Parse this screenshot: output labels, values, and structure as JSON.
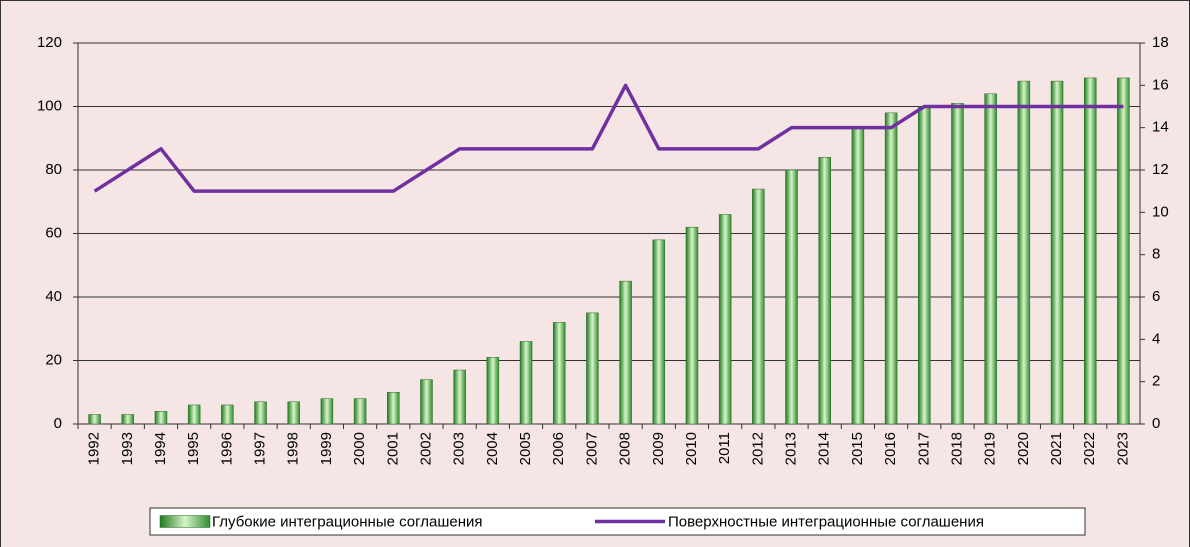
{
  "chart_data": {
    "type": "bar",
    "categories": [
      "1992",
      "1993",
      "1994",
      "1995",
      "1996",
      "1997",
      "1998",
      "1999",
      "2000",
      "2001",
      "2002",
      "2003",
      "2004",
      "2005",
      "2006",
      "2007",
      "2008",
      "2009",
      "2010",
      "2011",
      "2012",
      "2013",
      "2014",
      "2015",
      "2016",
      "2017",
      "2018",
      "2019",
      "2020",
      "2021",
      "2022",
      "2023"
    ],
    "series": [
      {
        "name": "Глубокие интеграционные соглашения",
        "type": "bar",
        "color": "#4ea83a",
        "values": [
          3,
          3,
          4,
          6,
          6,
          7,
          7,
          8,
          8,
          10,
          14,
          17,
          21,
          26,
          32,
          35,
          45,
          58,
          62,
          66,
          74,
          80,
          84,
          93,
          98,
          100,
          101,
          104,
          108,
          108,
          109,
          109
        ]
      },
      {
        "name": "Поверхностные интеграционные соглашения",
        "type": "line",
        "axis": "y2",
        "color": "#7030a0",
        "values": [
          11,
          12,
          13,
          11,
          11,
          11,
          11,
          11,
          11,
          11,
          12,
          13,
          13,
          13,
          13,
          13,
          16,
          13,
          13,
          13,
          13,
          14,
          14,
          14,
          14,
          15,
          15,
          15,
          15,
          15,
          15,
          15
        ]
      }
    ],
    "ylim": [
      0,
      120
    ],
    "yticks": [
      0,
      20,
      40,
      60,
      80,
      100,
      120
    ],
    "y2lim": [
      0,
      18
    ],
    "y2ticks": [
      0,
      2,
      4,
      6,
      8,
      10,
      12,
      14,
      16,
      18
    ],
    "grid": true,
    "legend": "bottom"
  }
}
